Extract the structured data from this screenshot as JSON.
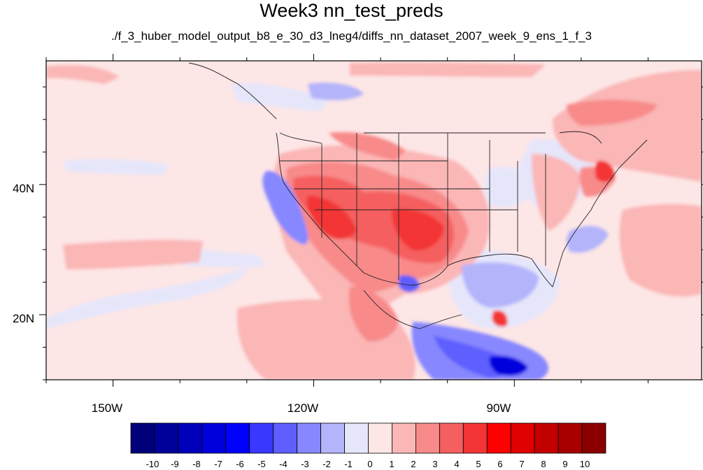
{
  "title": "Week3 nn_test_preds",
  "subtitle": "./f_3_huber_model_output_b8_e_30_d3_lneg4/diffs_nn_dataset_2007_week_9_ens_1_f_3",
  "map": {
    "projection": "cylindrical-equidistant",
    "lon_range": [
      -160,
      -62
    ],
    "lat_range": [
      10,
      59
    ],
    "x_ticks": [
      {
        "value": -150,
        "label": "150W"
      },
      {
        "value": -120,
        "label": "120W"
      },
      {
        "value": -90,
        "label": "90W"
      }
    ],
    "y_ticks": [
      {
        "value": 40,
        "label": "40N"
      },
      {
        "value": 20,
        "label": "20N"
      }
    ],
    "background_color": "#fde6e6"
  },
  "colorbar": {
    "labels": [
      "-10",
      "-9",
      "-8",
      "-7",
      "-6",
      "-5",
      "-4",
      "-3",
      "-2",
      "-1",
      "0",
      "1",
      "2",
      "3",
      "4",
      "5",
      "6",
      "7",
      "8",
      "9",
      "10"
    ],
    "colors": [
      "#00007a",
      "#00009a",
      "#0000bb",
      "#0000dd",
      "#0000ff",
      "#3838ff",
      "#5f5fff",
      "#8787ff",
      "#b4b4fb",
      "#e6e6fb",
      "#fde6e6",
      "#fbb6b6",
      "#f88a8a",
      "#f55f5f",
      "#f33535",
      "#ff0000",
      "#df0000",
      "#c30000",
      "#a80000",
      "#8a0000"
    ]
  }
}
